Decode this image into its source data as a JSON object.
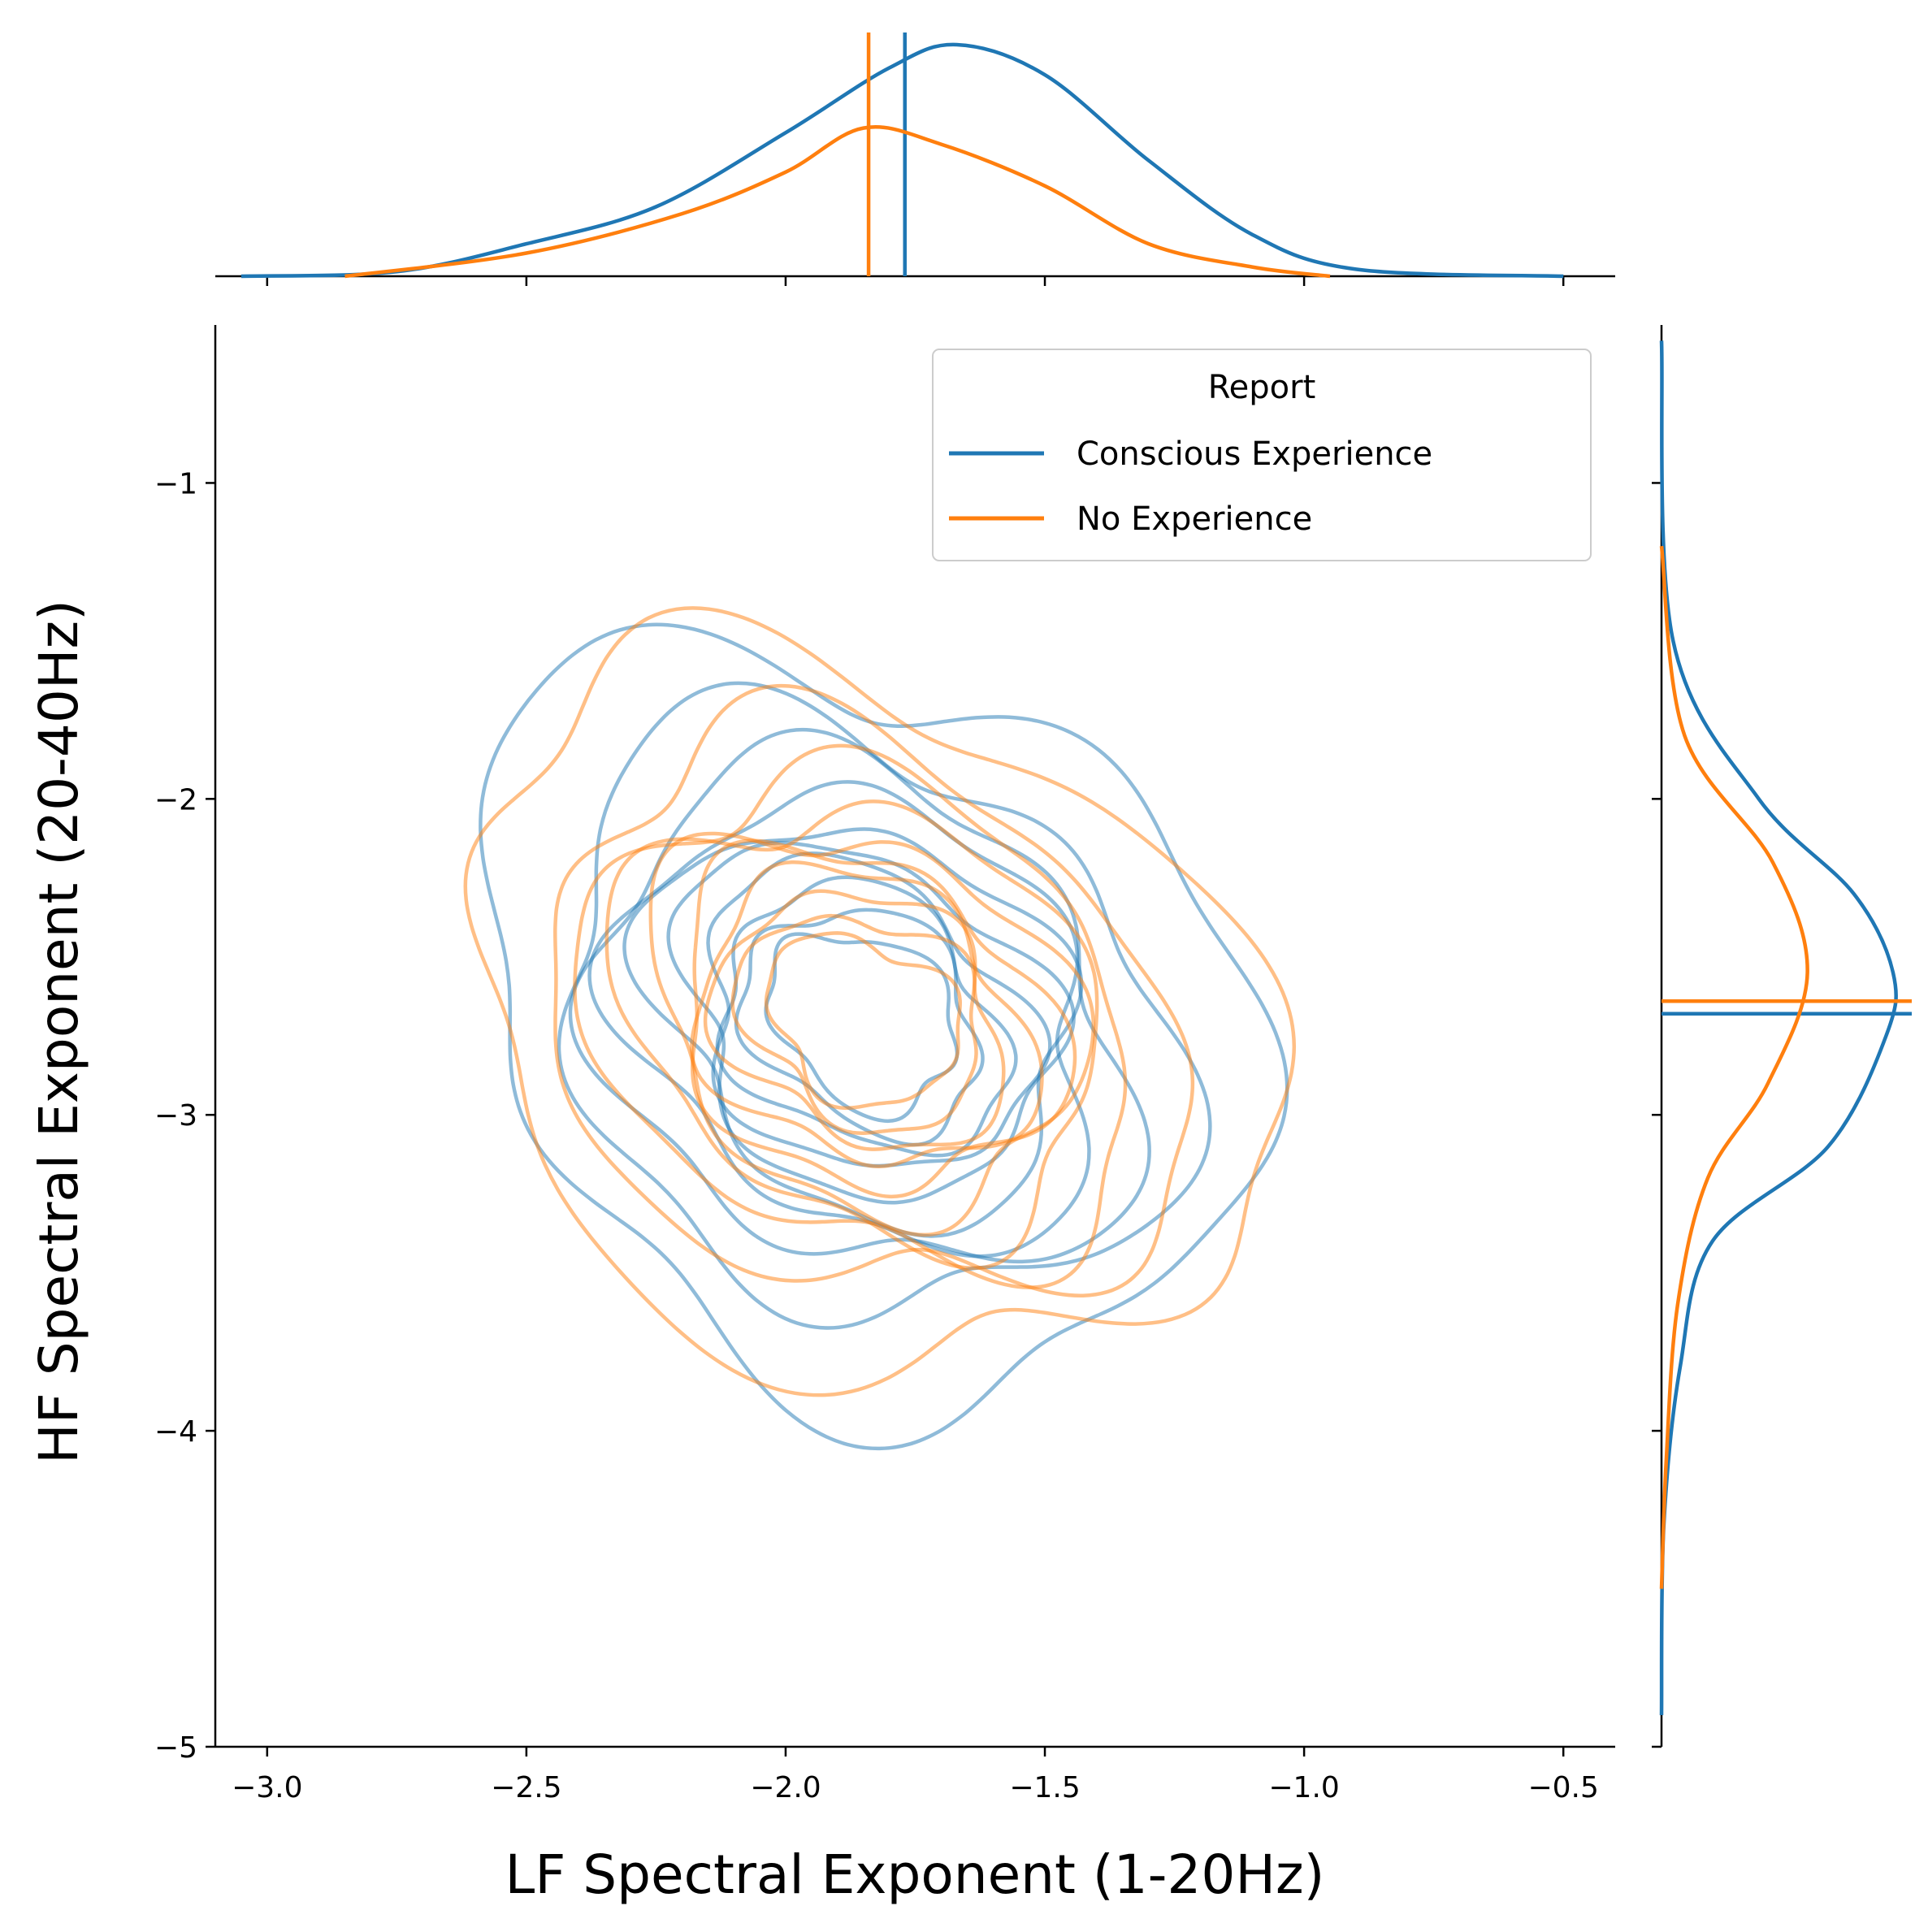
{
  "chart_data": {
    "type": "joint-kde",
    "xlabel": "LF Spectral Exponent (1-20Hz)",
    "ylabel": "HF Spectral Exponent (20-40Hz)",
    "xlim": [
      -3.1,
      -0.4
    ],
    "ylim": [
      -5.0,
      -0.5
    ],
    "xticks": [
      -3.0,
      -2.5,
      -2.0,
      -1.5,
      -1.0,
      -0.5
    ],
    "xtick_labels": [
      "−3.0",
      "−2.5",
      "−2.0",
      "−1.5",
      "−1.0",
      "−0.5"
    ],
    "yticks": [
      -1,
      -2,
      -3,
      -4,
      -5
    ],
    "ytick_labels": [
      "−1",
      "−2",
      "−3",
      "−4",
      "−5"
    ],
    "legend": {
      "title": "Report",
      "placement": "upper right",
      "entries": [
        "Conscious Experience",
        "No Experience"
      ]
    },
    "series": [
      {
        "name": "Conscious Experience",
        "color": "#1f77b4",
        "mean_x": -1.77,
        "mean_y": -2.68,
        "center": [
          -1.85,
          -2.7
        ],
        "cov": [
          [
            0.085,
            -0.032
          ],
          [
            -0.032,
            0.21
          ]
        ],
        "contour_levels": 10,
        "x_marginal": [
          [
            -3.05,
            0.0
          ],
          [
            -2.75,
            0.02
          ],
          [
            -2.5,
            0.14
          ],
          [
            -2.25,
            0.3
          ],
          [
            -2.0,
            0.62
          ],
          [
            -1.8,
            0.9
          ],
          [
            -1.67,
            1.0
          ],
          [
            -1.5,
            0.87
          ],
          [
            -1.3,
            0.5
          ],
          [
            -1.1,
            0.18
          ],
          [
            -0.9,
            0.03
          ],
          [
            -0.5,
            0.0
          ]
        ],
        "y_marginal": [
          [
            -0.55,
            0.0
          ],
          [
            -1.5,
            0.05
          ],
          [
            -2.0,
            0.42
          ],
          [
            -2.3,
            0.83
          ],
          [
            -2.55,
            1.0
          ],
          [
            -2.75,
            0.97
          ],
          [
            -3.1,
            0.72
          ],
          [
            -3.4,
            0.22
          ],
          [
            -3.8,
            0.08
          ],
          [
            -4.3,
            0.01
          ],
          [
            -4.9,
            0.0
          ]
        ]
      },
      {
        "name": "No Experience",
        "color": "#ff7f0e",
        "mean_x": -1.84,
        "mean_y": -2.64,
        "center": [
          -1.85,
          -2.7
        ],
        "cov": [
          [
            0.09,
            -0.03
          ],
          [
            -0.03,
            0.19
          ]
        ],
        "contour_levels": 10,
        "x_marginal": [
          [
            -2.85,
            0.0
          ],
          [
            -2.5,
            0.1
          ],
          [
            -2.2,
            0.27
          ],
          [
            -2.0,
            0.45
          ],
          [
            -1.85,
            0.64
          ],
          [
            -1.7,
            0.57
          ],
          [
            -1.5,
            0.39
          ],
          [
            -1.3,
            0.14
          ],
          [
            -1.1,
            0.04
          ],
          [
            -0.95,
            0.0
          ]
        ],
        "y_marginal": [
          [
            -1.2,
            0.0
          ],
          [
            -1.8,
            0.1
          ],
          [
            -2.2,
            0.48
          ],
          [
            -2.55,
            0.63
          ],
          [
            -2.9,
            0.46
          ],
          [
            -3.2,
            0.2
          ],
          [
            -3.6,
            0.07
          ],
          [
            -4.1,
            0.02
          ],
          [
            -4.5,
            0.0
          ]
        ]
      }
    ]
  }
}
